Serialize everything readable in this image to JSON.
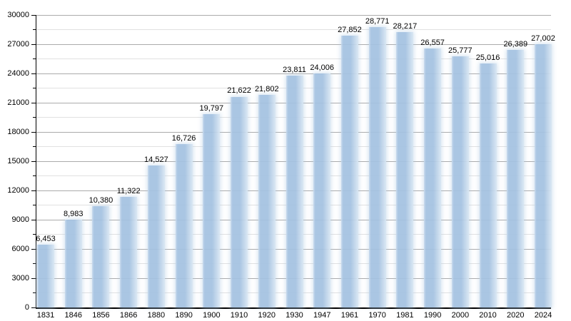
{
  "chart_data": {
    "type": "bar",
    "title": "",
    "xlabel": "",
    "ylabel": "",
    "categories": [
      "1831",
      "1846",
      "1856",
      "1866",
      "1880",
      "1890",
      "1900",
      "1910",
      "1920",
      "1930",
      "1947",
      "1961",
      "1970",
      "1981",
      "1990",
      "2000",
      "2010",
      "2020",
      "2024"
    ],
    "values": [
      6453,
      8983,
      10380,
      11322,
      14527,
      16726,
      19797,
      21622,
      21802,
      23811,
      24006,
      27852,
      28771,
      28217,
      26557,
      25777,
      25016,
      26389,
      27002
    ],
    "value_labels": [
      "6,453",
      "8,983",
      "10,380",
      "11,322",
      "14,527",
      "16,726",
      "19,797",
      "21,622",
      "21,802",
      "23,811",
      "24,006",
      "27,852",
      "28,771",
      "28,217",
      "26,557",
      "25,777",
      "25,016",
      "26,389",
      "27,002"
    ],
    "y_tick_labels": [
      "0",
      "3000",
      "6000",
      "9000",
      "12000",
      "15000",
      "18000",
      "21000",
      "24000",
      "27000",
      "30000"
    ],
    "ylim": [
      0,
      30000
    ],
    "y_major_step": 3000,
    "y_minor_step": 1500,
    "grid": true,
    "legend": "none",
    "colors": {
      "bar_main": "#a4c2e1",
      "bar_edge_light": "#d8e6f3",
      "major_grid": "#ababab",
      "minor_grid": "#e1e1e1",
      "axis": "#000000",
      "text": "#000000",
      "background": "#ffffff"
    }
  }
}
